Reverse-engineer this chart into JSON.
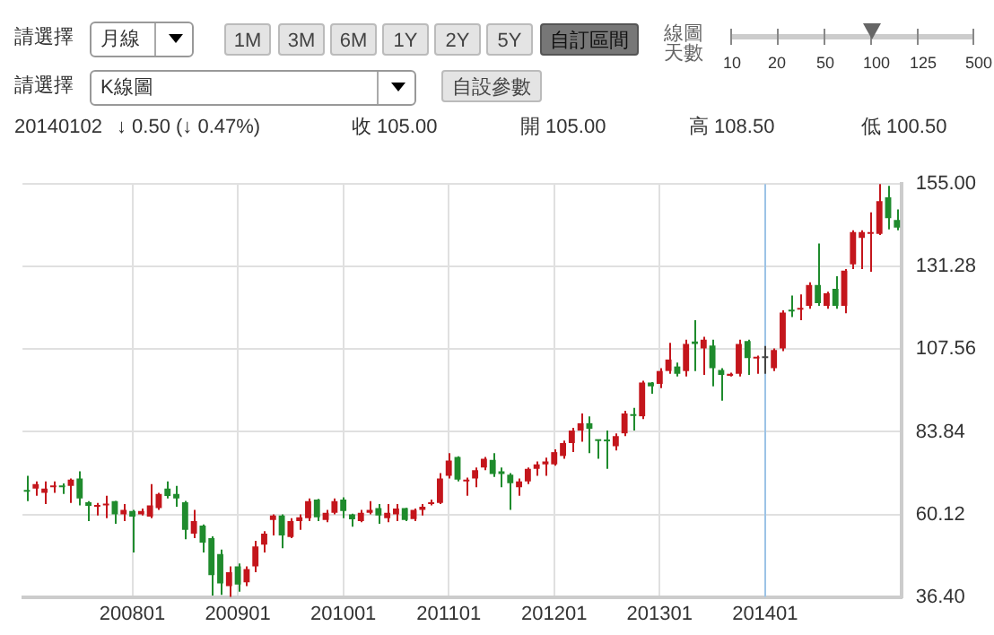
{
  "chart_data": {
    "type": "candlestick",
    "categories": [
      null,
      null,
      null,
      null,
      null,
      null,
      null,
      null,
      null,
      null,
      null,
      null,
      "200801",
      null,
      null,
      null,
      null,
      null,
      null,
      null,
      null,
      null,
      null,
      null,
      "200901",
      null,
      null,
      null,
      null,
      null,
      null,
      null,
      null,
      null,
      null,
      null,
      "201001",
      null,
      null,
      null,
      null,
      null,
      null,
      null,
      null,
      null,
      null,
      null,
      "201101",
      null,
      null,
      null,
      null,
      null,
      null,
      null,
      null,
      null,
      null,
      null,
      "201201",
      null,
      null,
      null,
      null,
      null,
      null,
      null,
      null,
      null,
      null,
      null,
      "201301",
      null,
      null,
      null,
      null,
      null,
      null,
      null,
      null,
      null,
      null,
      null,
      "201401",
      null,
      null,
      null,
      null,
      null,
      null,
      null,
      null,
      null,
      null,
      null,
      null,
      null,
      null,
      null
    ],
    "ohlc": [
      [
        67.1,
        71.2,
        63.9,
        66.6
      ],
      [
        67.5,
        69.6,
        65.5,
        68.8
      ],
      [
        66.3,
        69.6,
        63.1,
        67.5
      ],
      [
        67.9,
        69.6,
        66.3,
        68.3
      ],
      [
        68.3,
        69.0,
        66.0,
        67.9
      ],
      [
        68.3,
        70.4,
        63.4,
        70.1
      ],
      [
        70.4,
        72.5,
        62.7,
        64.7
      ],
      [
        63.6,
        63.9,
        58.2,
        62.6
      ],
      [
        62.3,
        63.4,
        59.8,
        62.7
      ],
      [
        62.7,
        65.5,
        59.0,
        63.1
      ],
      [
        63.9,
        64.0,
        57.4,
        60.1
      ],
      [
        60.1,
        63.1,
        58.2,
        61.4
      ],
      [
        61.1,
        61.4,
        49.2,
        59.5
      ],
      [
        60.1,
        61.8,
        59.8,
        61.1
      ],
      [
        59.5,
        68.8,
        59.0,
        62.7
      ],
      [
        61.9,
        66.3,
        61.4,
        66.0
      ],
      [
        67.5,
        69.6,
        64.7,
        65.4
      ],
      [
        66.0,
        68.3,
        62.3,
        64.7
      ],
      [
        63.6,
        64.0,
        53.0,
        55.7
      ],
      [
        54.6,
        61.4,
        53.3,
        58.2
      ],
      [
        56.9,
        57.2,
        49.2,
        52.0
      ],
      [
        53.3,
        53.8,
        36.8,
        42.7
      ],
      [
        48.7,
        50.0,
        37.0,
        40.3
      ],
      [
        39.5,
        45.2,
        36.4,
        43.5
      ],
      [
        45.2,
        46.0,
        37.9,
        40.0
      ],
      [
        40.6,
        45.2,
        39.5,
        44.4
      ],
      [
        45.2,
        52.5,
        43.5,
        50.9
      ],
      [
        51.4,
        55.3,
        49.2,
        54.6
      ],
      [
        58.5,
        60.1,
        54.1,
        59.8
      ],
      [
        59.8,
        60.1,
        50.4,
        54.1
      ],
      [
        53.6,
        59.0,
        53.3,
        58.2
      ],
      [
        58.2,
        60.1,
        55.7,
        59.3
      ],
      [
        59.0,
        64.7,
        58.2,
        63.9
      ],
      [
        64.4,
        64.6,
        58.2,
        59.3
      ],
      [
        58.5,
        61.4,
        57.9,
        60.6
      ],
      [
        60.6,
        64.7,
        60.1,
        63.9
      ],
      [
        64.4,
        65.0,
        59.0,
        61.1
      ],
      [
        60.1,
        60.3,
        56.6,
        58.7
      ],
      [
        58.2,
        61.4,
        57.9,
        60.6
      ],
      [
        60.6,
        63.9,
        60.1,
        61.4
      ],
      [
        61.9,
        63.1,
        57.4,
        59.8
      ],
      [
        59.0,
        63.1,
        57.9,
        60.6
      ],
      [
        60.1,
        63.1,
        58.2,
        61.8
      ],
      [
        61.9,
        62.0,
        58.2,
        58.5
      ],
      [
        58.8,
        61.8,
        58.2,
        61.4
      ],
      [
        61.4,
        63.1,
        59.8,
        62.3
      ],
      [
        63.1,
        64.4,
        62.7,
        63.4
      ],
      [
        63.4,
        72.0,
        63.1,
        70.4
      ],
      [
        71.2,
        77.7,
        70.4,
        75.6
      ],
      [
        76.6,
        76.8,
        69.6,
        70.1
      ],
      [
        69.6,
        70.7,
        65.5,
        70.1
      ],
      [
        70.4,
        73.6,
        67.9,
        72.8
      ],
      [
        73.6,
        76.6,
        72.8,
        76.1
      ],
      [
        75.8,
        77.7,
        70.9,
        71.7
      ],
      [
        72.5,
        73.6,
        67.9,
        71.7
      ],
      [
        71.5,
        72.0,
        61.4,
        69.1
      ],
      [
        67.9,
        70.4,
        65.5,
        69.6
      ],
      [
        69.6,
        73.6,
        68.8,
        73.2
      ],
      [
        73.2,
        75.3,
        71.2,
        74.5
      ],
      [
        74.5,
        76.4,
        71.2,
        75.3
      ],
      [
        74.5,
        78.8,
        74.1,
        78.0
      ],
      [
        76.9,
        81.3,
        76.1,
        80.6
      ],
      [
        80.6,
        85.0,
        78.0,
        84.2
      ],
      [
        84.2,
        89.1,
        81.0,
        86.3
      ],
      [
        86.3,
        88.3,
        77.7,
        84.7
      ],
      [
        81.5,
        81.6,
        76.1,
        81.2
      ],
      [
        81.3,
        84.2,
        73.2,
        81.1
      ],
      [
        79.7,
        83.4,
        78.5,
        82.6
      ],
      [
        83.4,
        89.9,
        82.6,
        89.1
      ],
      [
        88.7,
        90.7,
        84.2,
        88.4
      ],
      [
        88.3,
        98.5,
        87.5,
        98.0
      ],
      [
        98.0,
        98.1,
        94.8,
        96.9
      ],
      [
        97.6,
        102.1,
        96.4,
        101.3
      ],
      [
        101.3,
        109.4,
        100.5,
        104.6
      ],
      [
        102.6,
        103.7,
        99.7,
        100.5
      ],
      [
        101.3,
        110.3,
        99.7,
        109.1
      ],
      [
        109.8,
        115.9,
        101.3,
        109.1
      ],
      [
        107.8,
        111.1,
        100.2,
        110.3
      ],
      [
        108.6,
        110.3,
        96.9,
        102.1
      ],
      [
        101.6,
        102.1,
        92.8,
        100.2
      ],
      [
        99.9,
        100.8,
        99.7,
        100.5
      ],
      [
        100.5,
        110.3,
        99.7,
        109.1
      ],
      [
        109.9,
        110.3,
        100.2,
        105.0
      ],
      [
        104.9,
        105.7,
        100.5,
        105.4
      ],
      [
        105.0,
        108.5,
        100.5,
        105.0
      ],
      [
        102.1,
        107.8,
        101.3,
        107.3
      ],
      [
        107.8,
        118.7,
        107.0,
        118.1
      ],
      [
        118.9,
        123.0,
        116.8,
        118.4
      ],
      [
        118.9,
        123.3,
        115.9,
        119.4
      ],
      [
        120.0,
        126.8,
        119.2,
        126.0
      ],
      [
        126.0,
        137.9,
        120.0,
        120.8
      ],
      [
        120.0,
        124.1,
        119.2,
        123.6
      ],
      [
        124.9,
        128.5,
        119.2,
        120.0
      ],
      [
        120.0,
        130.6,
        117.9,
        130.1
      ],
      [
        131.9,
        141.7,
        130.6,
        141.2
      ],
      [
        139.5,
        141.7,
        130.6,
        141.2
      ],
      [
        140.7,
        146.9,
        129.8,
        141.2
      ],
      [
        140.7,
        155.0,
        140.4,
        150.1
      ],
      [
        151.2,
        154.5,
        142.0,
        145.2
      ],
      [
        144.7,
        147.7,
        141.7,
        142.5
      ]
    ],
    "colors": [
      "#1f8b2d",
      "#c4161c",
      "#c4161c",
      "#c4161c",
      "#1f8b2d",
      "#c4161c",
      "#1f8b2d",
      "#1f8b2d",
      "#c4161c",
      "#c4161c",
      "#1f8b2d",
      "#c4161c",
      "#1f8b2d",
      "#c4161c",
      "#c4161c",
      "#c4161c",
      "#1f8b2d",
      "#1f8b2d",
      "#1f8b2d",
      "#c4161c",
      "#1f8b2d",
      "#1f8b2d",
      "#1f8b2d",
      "#c4161c",
      "#1f8b2d",
      "#c4161c",
      "#c4161c",
      "#c4161c",
      "#c4161c",
      "#1f8b2d",
      "#c4161c",
      "#c4161c",
      "#c4161c",
      "#1f8b2d",
      "#c4161c",
      "#c4161c",
      "#1f8b2d",
      "#1f8b2d",
      "#c4161c",
      "#c4161c",
      "#1f8b2d",
      "#c4161c",
      "#c4161c",
      "#1f8b2d",
      "#c4161c",
      "#c4161c",
      "#c4161c",
      "#c4161c",
      "#c4161c",
      "#1f8b2d",
      "#c4161c",
      "#c4161c",
      "#c4161c",
      "#1f8b2d",
      "#1f8b2d",
      "#1f8b2d",
      "#c4161c",
      "#c4161c",
      "#c4161c",
      "#c4161c",
      "#c4161c",
      "#c4161c",
      "#c4161c",
      "#c4161c",
      "#1f8b2d",
      "#1f8b2d",
      "#1f8b2d",
      "#c4161c",
      "#c4161c",
      "#1f8b2d",
      "#c4161c",
      "#1f8b2d",
      "#c4161c",
      "#c4161c",
      "#1f8b2d",
      "#c4161c",
      "#1f8b2d",
      "#c4161c",
      "#1f8b2d",
      "#1f8b2d",
      "#c4161c",
      "#c4161c",
      "#1f8b2d",
      "#c4161c",
      "#444444",
      "#c4161c",
      "#c4161c",
      "#1f8b2d",
      "#c4161c",
      "#c4161c",
      "#1f8b2d",
      "#c4161c",
      "#1f8b2d",
      "#c4161c",
      "#c4161c",
      "#c4161c",
      "#c4161c",
      "#c4161c",
      "#1f8b2d",
      "#1f8b2d"
    ],
    "ylim": [
      36.4,
      155
    ],
    "yticks": [
      {
        "value": 36.4,
        "label": "36.40"
      },
      {
        "value": 60.12,
        "label": "60.12"
      },
      {
        "value": 83.84,
        "label": "83.84"
      },
      {
        "value": 107.56,
        "label": "107.56"
      },
      {
        "value": 131.28,
        "label": "131.28"
      },
      {
        "value": 155,
        "label": "155.00"
      }
    ],
    "grid": true,
    "ref_lines": [
      {
        "axis": "x",
        "value": "201401",
        "color": "#9cc3e6"
      }
    ],
    "annotations": [
      "請選擇",
      "月線",
      "1M",
      "3M",
      "6M",
      "1Y",
      "2Y",
      "5Y",
      "自訂區間",
      "線圖天數",
      "10",
      "20",
      "50",
      "100",
      "125",
      "500",
      "請選擇",
      "K線圖",
      "自設參數",
      "20140102",
      "↓ 0.50 (↓ 0.47%)",
      "收 105.00",
      "開 105.00",
      "高 108.50",
      "低 100.50"
    ]
  }
}
